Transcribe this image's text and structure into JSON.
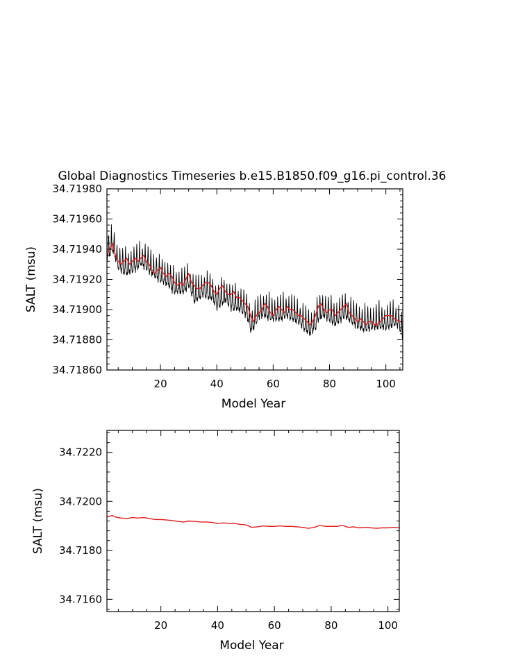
{
  "title": "Global Diagnostics Timeseries b.e15.B1850.f09_g16.pi_control.36",
  "colors": {
    "monthly": "#000000",
    "annual": "#e01e1e",
    "axes": "#000000"
  },
  "chart_data": [
    {
      "type": "line",
      "title": "Global Diagnostics Timeseries b.e15.B1850.f09_g16.pi_control.36",
      "xlabel": "Model Year",
      "ylabel": "SALT (msu)",
      "xlim": [
        1,
        106
      ],
      "ylim": [
        34.7186,
        34.7198
      ],
      "xticks": [
        20,
        40,
        60,
        80,
        100
      ],
      "xtick_labels": [
        "20",
        "40",
        "60",
        "80",
        "100"
      ],
      "yticks": [
        34.7186,
        34.7188,
        34.719,
        34.7192,
        34.7194,
        34.7196,
        34.7198
      ],
      "ytick_labels": [
        "34.71860",
        "34.71880",
        "34.71900",
        "34.71920",
        "34.71940",
        "34.71960",
        "34.71980"
      ],
      "grid": false,
      "series": [
        {
          "style": "monthly",
          "seasonal_cycle": {
            "months": [
              1,
              2,
              3,
              4,
              5,
              6,
              7,
              8,
              9,
              10,
              11,
              12
            ],
            "anomaly": [
              -2.5e-05,
              -3e-05,
              -2.8e-05,
              -1.8e-05,
              -5e-06,
              2e-05,
              7e-05,
              0.00012,
              7.5e-05,
              2e-05,
              -1.2e-05,
              -2.2e-05
            ]
          },
          "x": [
            1,
            3,
            5,
            8,
            10,
            13,
            15,
            18,
            20,
            23,
            25,
            28,
            30,
            32,
            35,
            38,
            40,
            43,
            45,
            48,
            50,
            51,
            52,
            53,
            55,
            57,
            60,
            62,
            65,
            68,
            70,
            72,
            73,
            75,
            76,
            78,
            80,
            82,
            85,
            88,
            90,
            92,
            95,
            97,
            100,
            102,
            104,
            105,
            106
          ],
          "y": [
            34.71936,
            34.71942,
            34.7193,
            34.71926,
            34.71928,
            34.71932,
            34.7193,
            34.71924,
            34.71922,
            34.71918,
            34.71914,
            34.71914,
            34.71918,
            34.71908,
            34.71912,
            34.7191,
            34.71904,
            34.71908,
            34.71904,
            34.71902,
            34.719,
            34.71896,
            34.71888,
            34.7189,
            34.71898,
            34.71898,
            34.71896,
            34.71896,
            34.71898,
            34.71895,
            34.71892,
            34.71888,
            34.71886,
            34.7189,
            34.71896,
            34.71898,
            34.71896,
            34.71892,
            34.71898,
            34.71894,
            34.71891,
            34.71889,
            34.7189,
            34.71891,
            34.7189,
            34.71892,
            34.71892,
            34.7189,
            34.71882
          ]
        },
        {
          "style": "annual",
          "x": [
            1,
            2,
            3,
            4,
            5,
            6,
            7,
            8,
            9,
            10,
            11,
            12,
            13,
            14,
            15,
            16,
            17,
            18,
            19,
            20,
            21,
            22,
            23,
            24,
            25,
            26,
            27,
            28,
            29,
            30,
            31,
            32,
            33,
            34,
            35,
            36,
            37,
            38,
            39,
            40,
            41,
            42,
            43,
            44,
            45,
            46,
            47,
            48,
            49,
            50,
            51,
            52,
            53,
            54,
            55,
            56,
            57,
            58,
            59,
            60,
            61,
            62,
            63,
            64,
            65,
            66,
            67,
            68,
            69,
            70,
            71,
            72,
            73,
            74,
            75,
            76,
            77,
            78,
            79,
            80,
            81,
            82,
            83,
            84,
            85,
            86,
            87,
            88,
            89,
            90,
            91,
            92,
            93,
            94,
            95,
            96,
            97,
            98,
            99,
            100,
            101,
            102,
            103,
            104,
            105,
            106
          ],
          "y": [
            34.71936,
            34.7194,
            34.71944,
            34.71936,
            34.71932,
            34.7193,
            34.71932,
            34.71934,
            34.7193,
            34.71932,
            34.71934,
            34.71932,
            34.71934,
            34.71936,
            34.71932,
            34.7193,
            34.71926,
            34.71924,
            34.71926,
            34.71928,
            34.71924,
            34.71922,
            34.71924,
            34.71922,
            34.71918,
            34.71916,
            34.71918,
            34.71916,
            34.7192,
            34.71924,
            34.71918,
            34.71916,
            34.71914,
            34.71914,
            34.71916,
            34.71918,
            34.71918,
            34.71916,
            34.71912,
            34.7191,
            34.71914,
            34.71916,
            34.71912,
            34.7191,
            34.7191,
            34.71912,
            34.71908,
            34.71908,
            34.71906,
            34.71904,
            34.71902,
            34.71896,
            34.71892,
            34.71896,
            34.71898,
            34.719,
            34.71904,
            34.71902,
            34.71898,
            34.71896,
            34.719,
            34.71902,
            34.719,
            34.71898,
            34.71902,
            34.719,
            34.719,
            34.71898,
            34.71896,
            34.71896,
            34.71894,
            34.71892,
            34.7189,
            34.71892,
            34.71896,
            34.71902,
            34.71904,
            34.719,
            34.71898,
            34.719,
            34.719,
            34.71896,
            34.71898,
            34.719,
            34.71902,
            34.71904,
            34.71898,
            34.71896,
            34.71894,
            34.71892,
            34.71894,
            34.71892,
            34.7189,
            34.71892,
            34.71892,
            34.7189,
            34.7189,
            34.71892,
            34.71894,
            34.71896,
            34.71896,
            34.71896,
            34.71894,
            34.71893,
            34.71892,
            34.71892
          ]
        }
      ]
    },
    {
      "type": "line",
      "xlabel": "Model Year",
      "ylabel": "SALT (msu)",
      "xlim": [
        1,
        104
      ],
      "ylim": [
        34.7155,
        34.7229
      ],
      "xticks": [
        20,
        40,
        60,
        80,
        100
      ],
      "xtick_labels": [
        "20",
        "40",
        "60",
        "80",
        "100"
      ],
      "yticks": [
        34.716,
        34.718,
        34.72,
        34.722
      ],
      "ytick_labels": [
        "34.7160",
        "34.7180",
        "34.7200",
        "34.7220"
      ],
      "grid": false,
      "series": [
        {
          "style": "annual",
          "x": [
            1,
            2,
            3,
            4,
            6,
            8,
            10,
            12,
            14,
            16,
            18,
            20,
            22,
            24,
            26,
            28,
            30,
            32,
            34,
            36,
            38,
            40,
            42,
            44,
            46,
            48,
            50,
            52,
            54,
            56,
            58,
            60,
            62,
            64,
            66,
            68,
            70,
            72,
            74,
            76,
            78,
            80,
            82,
            84,
            86,
            88,
            90,
            92,
            94,
            96,
            98,
            100,
            102,
            104
          ],
          "y": [
            34.71936,
            34.7194,
            34.71942,
            34.71936,
            34.71932,
            34.7193,
            34.71934,
            34.71932,
            34.71934,
            34.7193,
            34.71926,
            34.71926,
            34.71924,
            34.71922,
            34.71918,
            34.71916,
            34.7192,
            34.71918,
            34.71916,
            34.71916,
            34.71914,
            34.7191,
            34.71912,
            34.7191,
            34.7191,
            34.71906,
            34.71904,
            34.71894,
            34.71896,
            34.719,
            34.71898,
            34.71898,
            34.719,
            34.71898,
            34.71898,
            34.71896,
            34.71894,
            34.7189,
            34.71894,
            34.71902,
            34.71898,
            34.71898,
            34.71898,
            34.71902,
            34.71894,
            34.71896,
            34.71892,
            34.71894,
            34.71892,
            34.7189,
            34.71892,
            34.71892,
            34.71894,
            34.71892
          ]
        }
      ]
    }
  ]
}
